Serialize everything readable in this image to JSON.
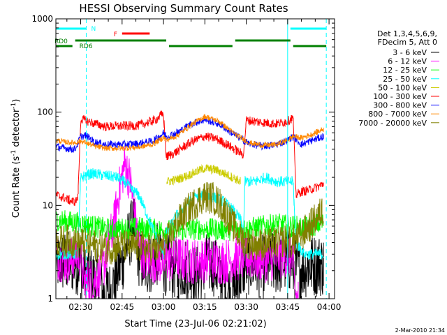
{
  "chart_data": {
    "type": "line",
    "title": "HESSI Observing Summary Count Rates",
    "xlabel": "Start Time (23-Jul-06 02:21:02)",
    "ylabel": "Count Rate (s^-1 detector^-1)",
    "ylabel_main": "Count Rate (s",
    "ylabel_sup1": "-1",
    "ylabel_mid": " detector",
    "ylabel_sup2": "-1",
    "ylabel_end": ")",
    "yscale": "log",
    "ylim": [
      1,
      1000
    ],
    "xlim_minutes": [
      0,
      101
    ],
    "x_ticks": [
      {
        "m": 9,
        "label": "02:30"
      },
      {
        "m": 24,
        "label": "02:45"
      },
      {
        "m": 39,
        "label": "03:00"
      },
      {
        "m": 54,
        "label": "03:15"
      },
      {
        "m": 69,
        "label": "03:30"
      },
      {
        "m": 84,
        "label": "03:45"
      },
      {
        "m": 99,
        "label": "04:00"
      }
    ],
    "y_ticks": [
      {
        "v": 1,
        "label": "1"
      },
      {
        "v": 10,
        "label": "10"
      },
      {
        "v": 100,
        "label": "100"
      },
      {
        "v": 1000,
        "label": "1000"
      }
    ],
    "legend_header": [
      "Det 1,3,4,5,6,9,",
      "FDecim 5, Att 0"
    ],
    "legend_position": "top-right",
    "series": [
      {
        "name": "3 - 6 keV",
        "color": "#000000",
        "x": [
          0,
          9,
          9.5,
          16,
          17,
          20,
          22,
          24,
          26,
          28,
          30,
          32,
          34,
          37,
          39,
          41,
          44,
          46,
          48,
          51,
          54,
          57,
          60,
          62,
          64,
          66,
          68,
          70,
          75,
          80,
          83,
          85.5,
          86,
          92,
          97
        ],
        "y": [
          2.5,
          2.4,
          1.8,
          1.5,
          1.1,
          1.2,
          1.8,
          2.5,
          4,
          6,
          3,
          2.2,
          2.4,
          3,
          2.5,
          2.2,
          2.1,
          2.2,
          2.0,
          1.8,
          2.3,
          2.4,
          1.7,
          1.2,
          1.1,
          1.6,
          2.2,
          2.4,
          2.2,
          2.4,
          2.5,
          2.6,
          2.0,
          2.3,
          2.3
        ]
      },
      {
        "name": "6 - 12 keV",
        "color": "#ff00ff",
        "x": [
          0,
          5,
          7,
          9,
          10,
          14,
          17,
          19,
          21,
          23,
          25,
          27,
          29,
          31,
          34,
          39,
          44,
          48,
          54,
          60,
          66,
          69,
          76,
          80,
          84,
          85,
          86,
          86.5,
          87,
          88
        ],
        "y": [
          2.8,
          2.5,
          3,
          3,
          1.5,
          1.6,
          2,
          3.8,
          6,
          15,
          28,
          18,
          6,
          3,
          2.6,
          2.5,
          2.7,
          2.5,
          2.6,
          2.5,
          2.7,
          2.8,
          2.6,
          2.8,
          3,
          2.9,
          2.3,
          1.5,
          1,
          1
        ]
      },
      {
        "name": "12 - 25 keV",
        "color": "#00ff00",
        "x": [
          0,
          8,
          16,
          20,
          24,
          28,
          30,
          36,
          44,
          52,
          60,
          68,
          72,
          80,
          85,
          90,
          97
        ],
        "y": [
          7,
          6.5,
          5.8,
          5.5,
          5.6,
          5.7,
          5.8,
          5.5,
          5.4,
          5.6,
          5.5,
          5.5,
          5.8,
          6.3,
          6,
          5.8,
          6.5
        ]
      },
      {
        "name": "25 - 50 keV",
        "color": "#00ffff",
        "x": [
          0,
          8,
          9,
          13,
          22,
          26,
          27,
          30,
          33,
          36,
          38,
          39,
          40,
          44,
          47,
          50,
          54,
          58,
          61,
          64,
          67,
          68,
          68.5,
          72,
          76,
          80,
          84,
          86,
          87,
          90,
          94,
          97
        ],
        "y": [
          3,
          3,
          20,
          22,
          20,
          17,
          15,
          13,
          8,
          5,
          3.5,
          3,
          5,
          8,
          10,
          12,
          13,
          12,
          11,
          9,
          7,
          5,
          18,
          18,
          20,
          18,
          18,
          18,
          4,
          3,
          3,
          3
        ]
      },
      {
        "name": "50 - 100 keV",
        "color": "#cccc00",
        "x": [
          0,
          39,
          40,
          44,
          48,
          51,
          54,
          58,
          61,
          64,
          67,
          68,
          69,
          97
        ],
        "y": [
          null,
          null,
          18,
          19,
          21,
          23,
          25,
          24,
          22,
          20,
          18,
          null,
          null,
          null
        ]
      },
      {
        "name": "100 - 300 keV",
        "color": "#ff0000",
        "x": [
          0,
          3,
          6,
          7,
          8,
          9,
          13,
          18,
          24,
          30,
          36,
          38,
          39,
          40,
          44,
          49,
          54,
          58,
          62,
          66,
          68,
          69,
          74,
          80,
          84,
          86,
          87,
          89,
          93,
          97
        ],
        "y": [
          13,
          12,
          11,
          11,
          12,
          85,
          77,
          70,
          71,
          72,
          82,
          92,
          95,
          33,
          38,
          48,
          55,
          52,
          45,
          38,
          35,
          82,
          78,
          75,
          80,
          88,
          13,
          14,
          15,
          17
        ]
      },
      {
        "name": "300 - 800 keV",
        "color": "#0000ff",
        "x": [
          0,
          3,
          7,
          9,
          11,
          14,
          18,
          24,
          30,
          35,
          38,
          39,
          40,
          44,
          49,
          54,
          59,
          63,
          67,
          70,
          75,
          80,
          84,
          86,
          89,
          93,
          97
        ],
        "y": [
          43,
          41,
          40,
          55,
          56,
          48,
          45,
          45,
          46,
          49,
          56,
          60,
          55,
          60,
          75,
          83,
          75,
          62,
          52,
          46,
          43,
          45,
          50,
          55,
          45,
          50,
          55
        ]
      },
      {
        "name": "800 - 7000 keV",
        "color": "#ff8800",
        "x": [
          0,
          3,
          7,
          9,
          11,
          14,
          18,
          24,
          30,
          35,
          38,
          39,
          40,
          44,
          49,
          54,
          59,
          63,
          67,
          70,
          75,
          80,
          84,
          86,
          89,
          93,
          97
        ],
        "y": [
          50,
          48,
          47,
          49,
          47,
          43,
          41,
          41,
          42,
          45,
          51,
          54,
          50,
          56,
          73,
          90,
          80,
          64,
          53,
          47,
          44,
          45,
          50,
          55,
          53,
          58,
          66
        ]
      },
      {
        "name": "7000 - 20000 keV",
        "color": "#808000",
        "x": [
          0,
          5,
          8,
          12,
          16,
          20,
          24,
          28,
          31,
          34,
          38,
          40,
          44,
          48,
          51,
          54,
          57,
          60,
          63,
          66,
          69,
          75,
          80,
          83,
          85,
          88,
          92,
          97
        ],
        "y": [
          4,
          4.2,
          4,
          3.8,
          3.6,
          3.5,
          3.7,
          3.6,
          3.6,
          3.4,
          3.5,
          4,
          6.5,
          9,
          11,
          12.5,
          12,
          10,
          7,
          5,
          4,
          3.8,
          4,
          4.2,
          4,
          4.5,
          6,
          9
        ]
      }
    ],
    "segments": [
      {
        "label": "N",
        "color": "#00ffff",
        "start": 0,
        "end": 11
      },
      {
        "label": "",
        "color": "#00ffff",
        "start": 85,
        "end": 98
      },
      {
        "label": "F",
        "color": "#ff0000",
        "start": 24,
        "end": 34
      },
      {
        "label": "RD0",
        "color": "#008000",
        "start": 0,
        "end": 6
      },
      {
        "label": "RD6",
        "color": "#008000",
        "start": 7,
        "end": 40
      },
      {
        "label": "",
        "color": "#008000",
        "start": 41,
        "end": 64
      },
      {
        "label": "",
        "color": "#008000",
        "start": 65,
        "end": 85
      },
      {
        "label": "",
        "color": "#008000",
        "start": 86,
        "end": 98
      }
    ],
    "vertical_markers": [
      {
        "m": 0,
        "color": "#00ffff",
        "style": "solid"
      },
      {
        "m": 11,
        "color": "#00ffff",
        "style": "dashed"
      },
      {
        "m": 84,
        "color": "#00ffff",
        "style": "solid"
      },
      {
        "m": 98,
        "color": "#00ffff",
        "style": "dashed"
      }
    ],
    "footer_date": "2-Mar-2010 21:34"
  }
}
